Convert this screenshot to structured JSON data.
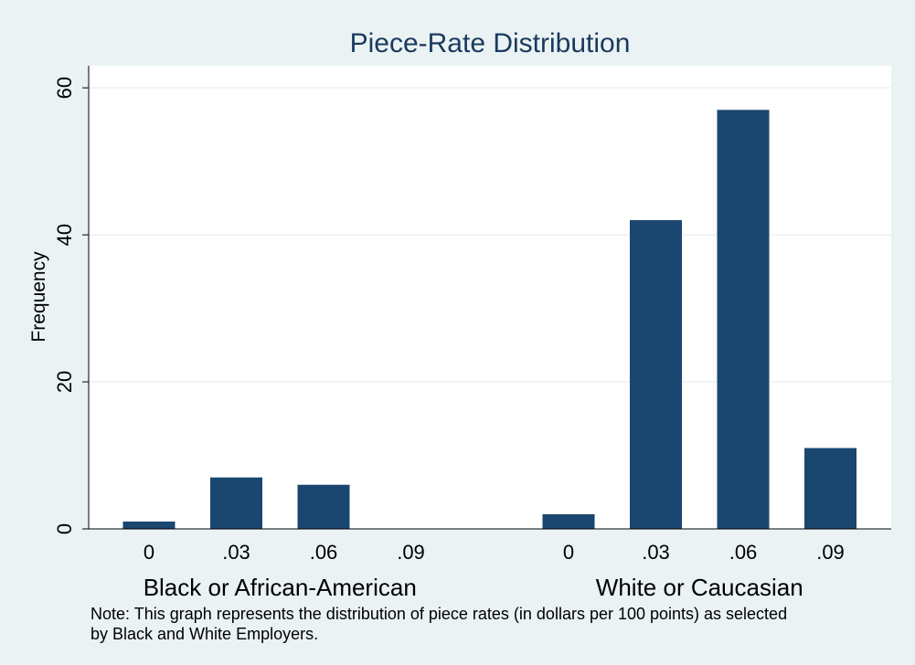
{
  "chart_data": {
    "type": "bar",
    "title": "Piece-Rate Distribution",
    "xlabel": "",
    "ylabel": "Frequency",
    "ylim": [
      0,
      63
    ],
    "yticks": [
      "0",
      "20",
      "40",
      "60"
    ],
    "ytick_values": [
      0,
      20,
      40,
      60
    ],
    "grid": true,
    "bar_color": "#1a476f",
    "groups": [
      {
        "label": "Black or African-American",
        "categories": [
          "0",
          ".03",
          ".06",
          ".09"
        ],
        "values": [
          1,
          7,
          6,
          0
        ]
      },
      {
        "label": "White or Caucasian",
        "categories": [
          "0",
          ".03",
          ".06",
          ".09"
        ],
        "values": [
          2,
          42,
          57,
          11
        ]
      }
    ],
    "note": [
      "Note: This graph represents the distribution of piece rates (in dollars per 100 points) as selected",
      "by Black and White Employers."
    ]
  }
}
